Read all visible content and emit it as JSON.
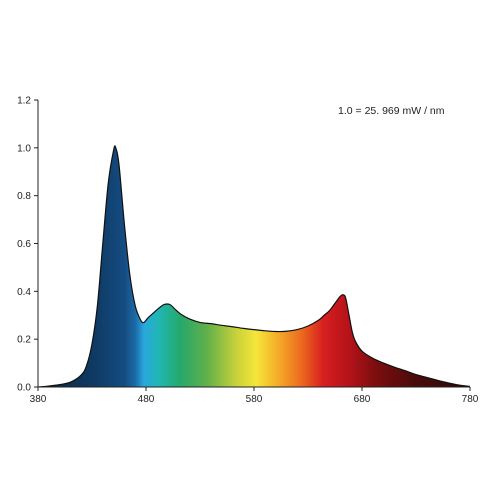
{
  "chart_data": {
    "type": "area",
    "title": "",
    "xlabel": "",
    "ylabel": "",
    "annotation": "1.0 = 25. 969 mW / nm",
    "xlim": [
      380,
      780
    ],
    "ylim": [
      0,
      1.2
    ],
    "x_ticks": [
      "380",
      "480",
      "580",
      "680",
      "780"
    ],
    "y_ticks": [
      "0.0",
      "0.2",
      "0.4",
      "0.6",
      "0.8",
      "1.0",
      "1.2"
    ],
    "grid": false,
    "fill": "visible-spectrum gradient",
    "series": [
      {
        "x": [
          380,
          390,
          400,
          410,
          420,
          425,
          430,
          435,
          440,
          445,
          450,
          452,
          455,
          460,
          465,
          470,
          475,
          478,
          482,
          487,
          492,
          497,
          502,
          507,
          512,
          520,
          530,
          540,
          550,
          560,
          570,
          580,
          590,
          600,
          610,
          620,
          630,
          640,
          645,
          650,
          655,
          660,
          663,
          665,
          668,
          671,
          674,
          680,
          690,
          700,
          710,
          720,
          730,
          740,
          750,
          760,
          770,
          780
        ],
        "values": [
          0.0,
          0.004,
          0.01,
          0.02,
          0.05,
          0.09,
          0.18,
          0.34,
          0.6,
          0.85,
          0.99,
          1.0,
          0.93,
          0.68,
          0.47,
          0.34,
          0.28,
          0.27,
          0.29,
          0.31,
          0.33,
          0.345,
          0.345,
          0.325,
          0.305,
          0.285,
          0.27,
          0.265,
          0.258,
          0.252,
          0.245,
          0.24,
          0.235,
          0.232,
          0.233,
          0.24,
          0.255,
          0.28,
          0.3,
          0.32,
          0.35,
          0.38,
          0.385,
          0.37,
          0.3,
          0.23,
          0.19,
          0.15,
          0.12,
          0.1,
          0.083,
          0.068,
          0.052,
          0.04,
          0.028,
          0.017,
          0.008,
          0.002
        ]
      }
    ]
  }
}
